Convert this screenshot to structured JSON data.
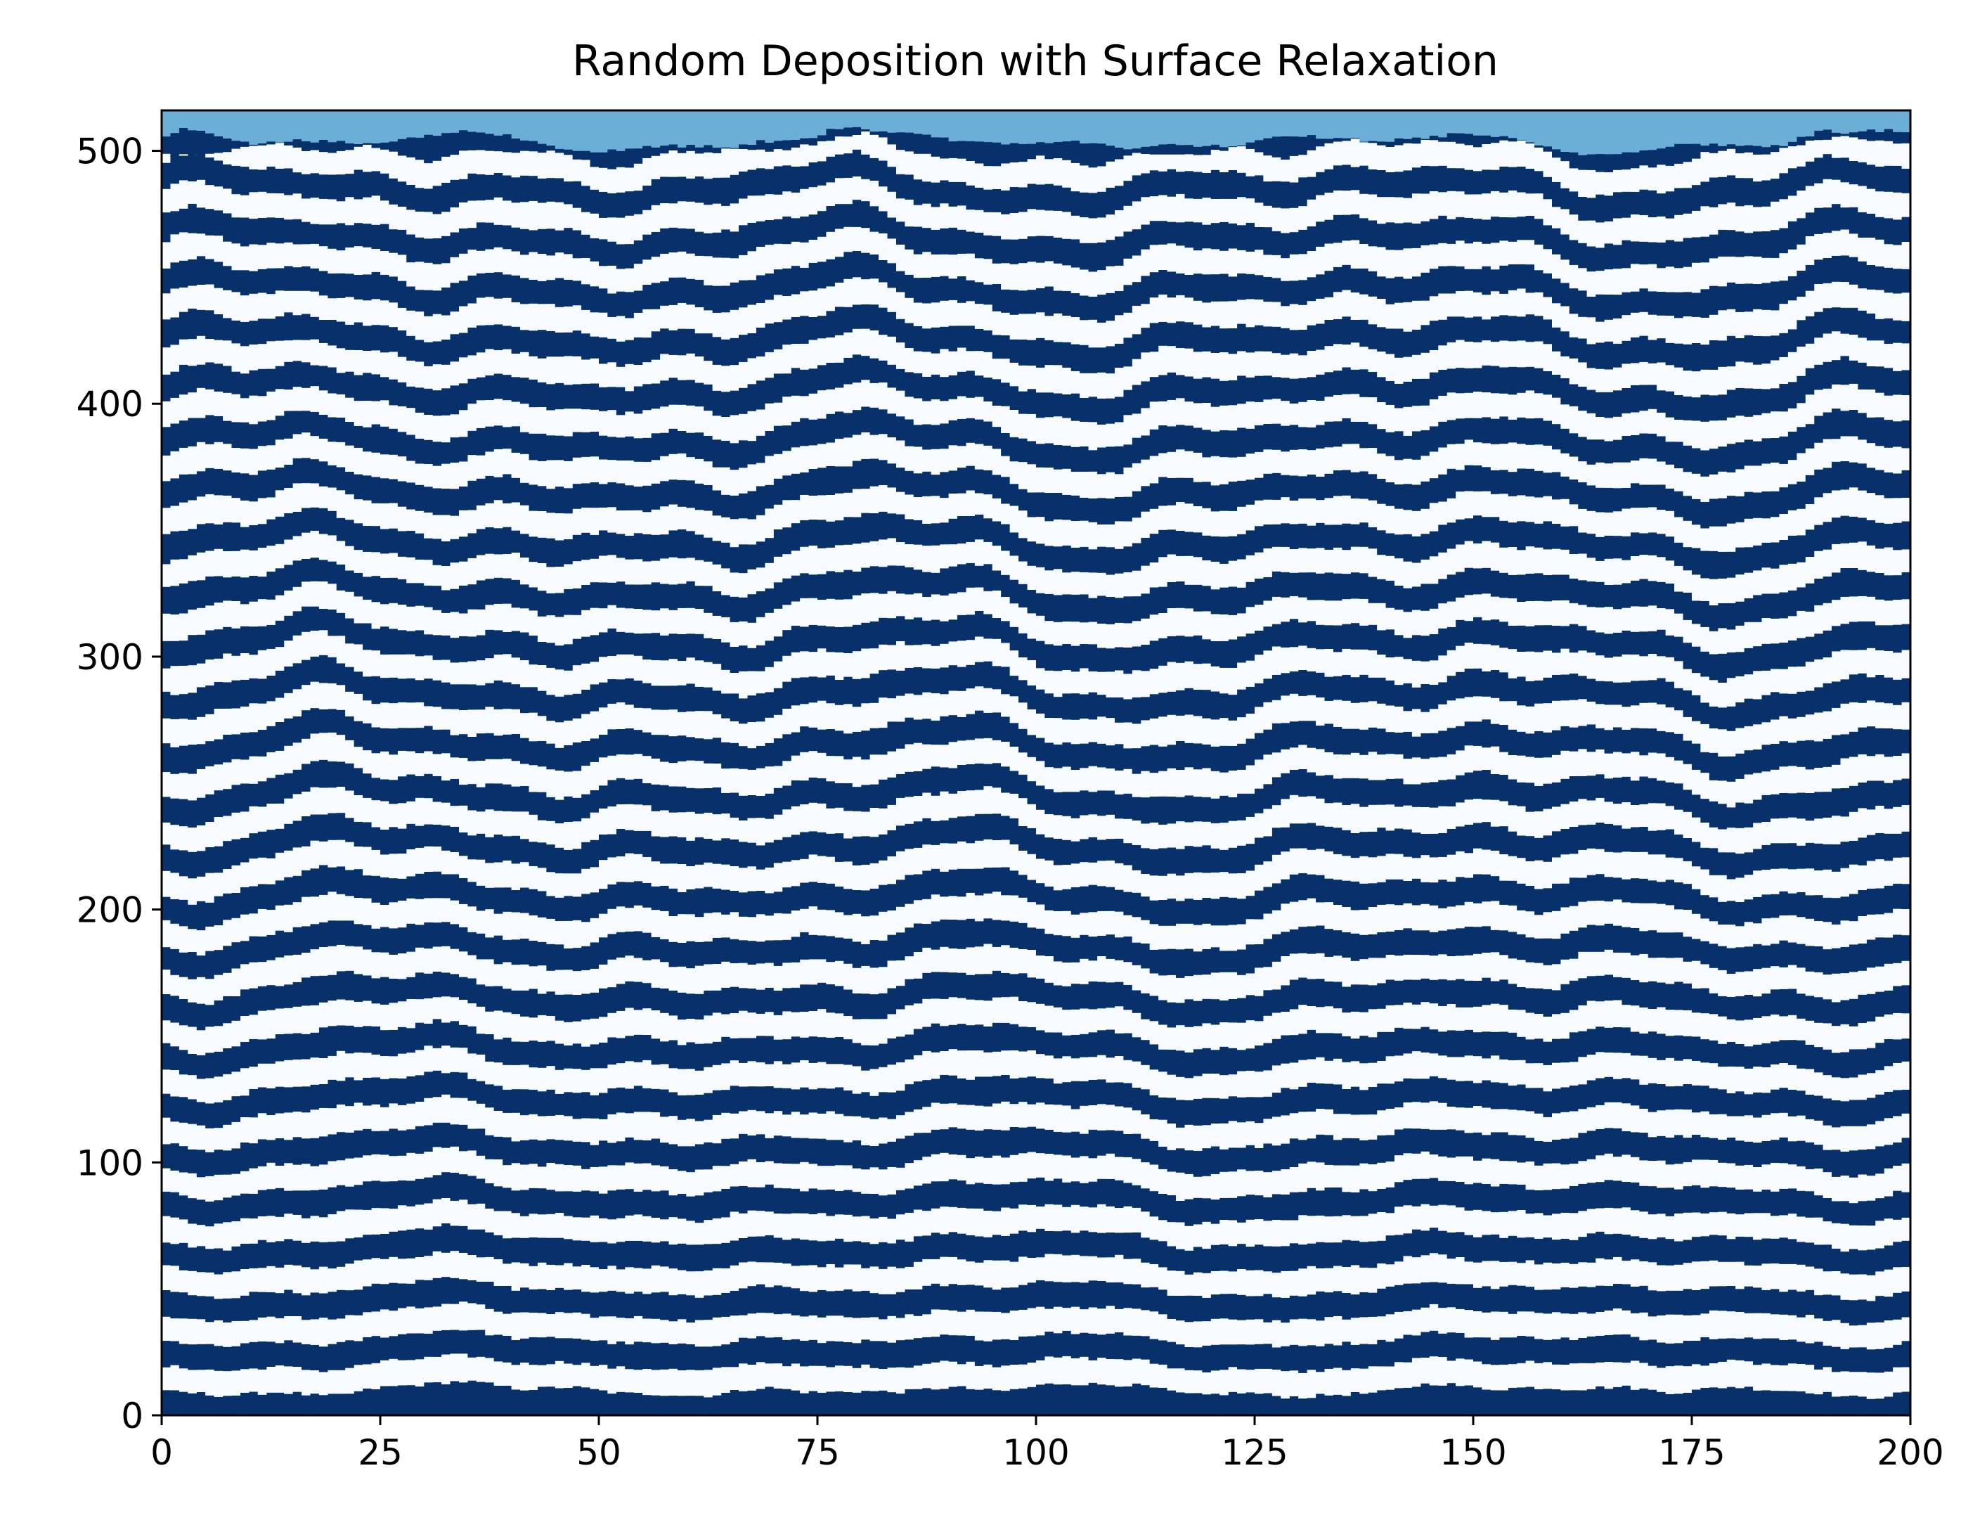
{
  "chart_data": {
    "type": "heatmap",
    "title": "Random Deposition with Surface Relaxation",
    "xlabel": "",
    "ylabel": "",
    "xlim": [
      0,
      200
    ],
    "ylim": [
      0,
      516
    ],
    "x_ticks": [
      0,
      25,
      50,
      75,
      100,
      125,
      150,
      175,
      200
    ],
    "y_ticks": [
      0,
      100,
      200,
      300,
      400,
      500
    ],
    "x_tick_labels": [
      "0",
      "25",
      "50",
      "75",
      "100",
      "125",
      "150",
      "175",
      "200"
    ],
    "y_tick_labels": [
      "0",
      "100",
      "200",
      "300",
      "400",
      "500"
    ],
    "grid": false,
    "legend": "none",
    "columns": 200,
    "mean_final_height": 503,
    "deposition_band_thickness": 10,
    "alternating_band_count": 51,
    "band_colors": [
      "#08306b",
      "#f7fbff"
    ],
    "empty_color": "#6baed6",
    "colormap": "Blues"
  }
}
